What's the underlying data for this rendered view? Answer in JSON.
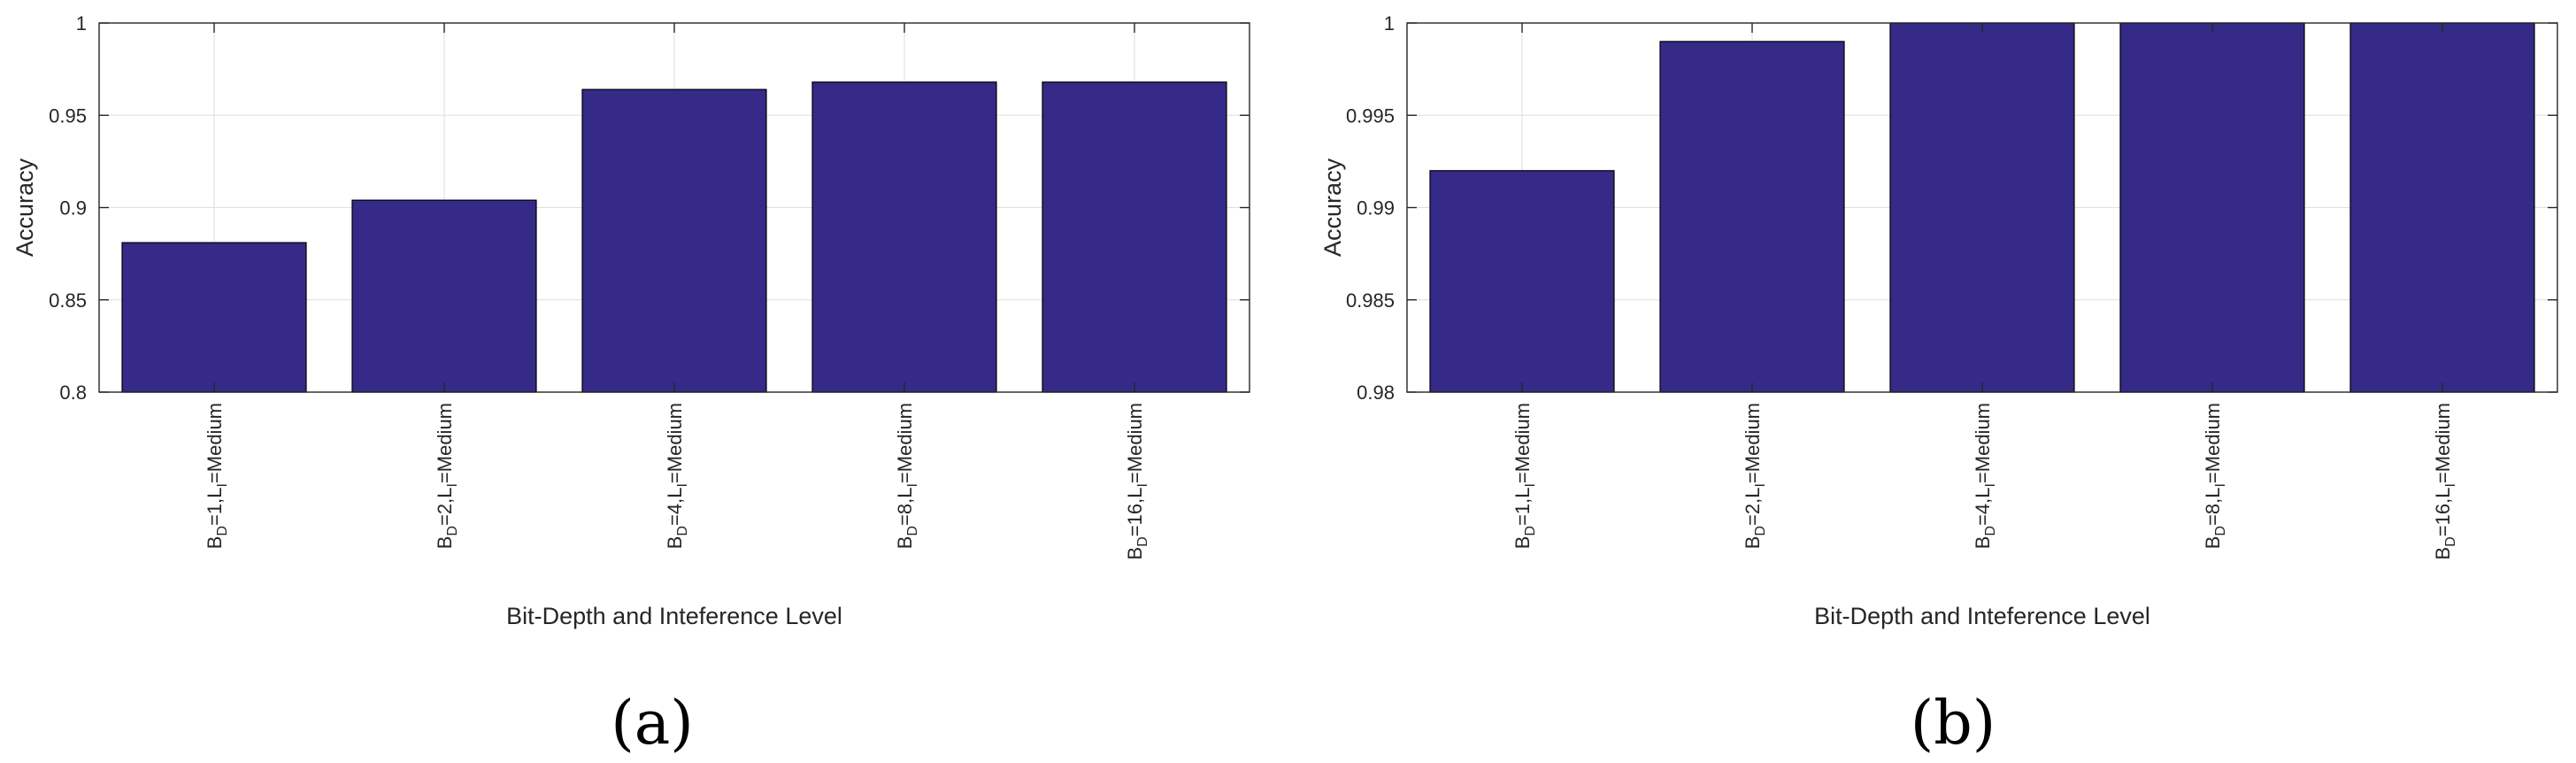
{
  "chart_data": [
    {
      "type": "bar",
      "panel_label": "(a)",
      "categories": [
        {
          "b": "1",
          "label": "B_D=1,L_I=Medium"
        },
        {
          "b": "2",
          "label": "B_D=2,L_I=Medium"
        },
        {
          "b": "4",
          "label": "B_D=4,L_I=Medium"
        },
        {
          "b": "8",
          "label": "B_D=8,L_I=Medium"
        },
        {
          "b": "16",
          "label": "B_D=16,L_I=Medium"
        }
      ],
      "values": [
        0.881,
        0.904,
        0.964,
        0.968,
        0.968
      ],
      "xlabel": "Bit-Depth and Inteference Level",
      "ylabel": "Accuracy",
      "ylim": [
        0.8,
        1.0
      ],
      "yticks": [
        0.8,
        0.85,
        0.9,
        0.95,
        1
      ],
      "ytick_labels": [
        "0.8",
        "0.85",
        "0.9",
        "0.95",
        "1"
      ],
      "grid": true,
      "bar_color": "#352a87"
    },
    {
      "type": "bar",
      "panel_label": "(b)",
      "categories": [
        {
          "b": "1",
          "label": "B_D=1,L_I=Medium"
        },
        {
          "b": "2",
          "label": "B_D=2,L_I=Medium"
        },
        {
          "b": "4",
          "label": "B_D=4,L_I=Medium"
        },
        {
          "b": "8",
          "label": "B_D=8,L_I=Medium"
        },
        {
          "b": "16",
          "label": "B_D=16,L_I=Medium"
        }
      ],
      "values": [
        0.992,
        0.999,
        1.0,
        1.0,
        1.0
      ],
      "xlabel": "Bit-Depth and Inteference Level",
      "ylabel": "Accuracy",
      "ylim": [
        0.98,
        1.0
      ],
      "yticks": [
        0.98,
        0.985,
        0.99,
        0.995,
        1
      ],
      "ytick_labels": [
        "0.98",
        "0.985",
        "0.99",
        "0.995",
        "1"
      ],
      "grid": true,
      "bar_color": "#352a87"
    }
  ]
}
